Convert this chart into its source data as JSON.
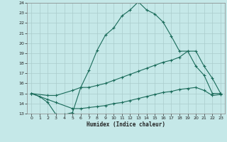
{
  "xlabel": "Humidex (Indice chaleur)",
  "xlim": [
    -0.5,
    23.5
  ],
  "ylim": [
    13,
    24
  ],
  "yticks": [
    13,
    14,
    15,
    16,
    17,
    18,
    19,
    20,
    21,
    22,
    23,
    24
  ],
  "xticks": [
    0,
    1,
    2,
    3,
    4,
    5,
    6,
    7,
    8,
    9,
    10,
    11,
    12,
    13,
    14,
    15,
    16,
    17,
    18,
    19,
    20,
    21,
    22,
    23
  ],
  "bg_color": "#c5e8e8",
  "line_color": "#1a6b5a",
  "grid_color": "#aacccc",
  "line1_x": [
    0,
    1,
    2,
    3,
    4,
    5,
    6,
    7,
    8,
    9,
    10,
    11,
    12,
    13,
    14,
    15,
    16,
    17,
    18,
    19,
    20,
    21,
    22,
    23
  ],
  "line1_y": [
    15.0,
    14.7,
    14.1,
    12.9,
    12.9,
    13.1,
    15.6,
    17.3,
    19.3,
    20.8,
    21.5,
    22.7,
    23.3,
    24.1,
    23.3,
    22.9,
    22.1,
    20.7,
    19.2,
    19.2,
    17.7,
    16.8,
    15.0,
    15.0
  ],
  "line2_x": [
    0,
    2,
    3,
    5,
    6,
    7,
    8,
    9,
    10,
    11,
    12,
    13,
    14,
    15,
    16,
    17,
    18,
    19,
    20,
    21,
    22,
    23
  ],
  "line2_y": [
    15.0,
    14.8,
    14.8,
    15.3,
    15.6,
    15.6,
    15.8,
    16.0,
    16.3,
    16.6,
    16.9,
    17.2,
    17.5,
    17.8,
    18.1,
    18.3,
    18.6,
    19.2,
    19.2,
    17.7,
    16.5,
    15.0
  ],
  "line3_x": [
    0,
    2,
    3,
    5,
    6,
    7,
    8,
    9,
    10,
    11,
    12,
    13,
    14,
    15,
    16,
    17,
    18,
    19,
    20,
    21,
    22,
    23
  ],
  "line3_y": [
    15.0,
    14.4,
    14.1,
    13.5,
    13.5,
    13.6,
    13.7,
    13.8,
    14.0,
    14.1,
    14.3,
    14.5,
    14.7,
    14.9,
    15.1,
    15.2,
    15.4,
    15.5,
    15.6,
    15.3,
    14.8,
    14.9
  ]
}
